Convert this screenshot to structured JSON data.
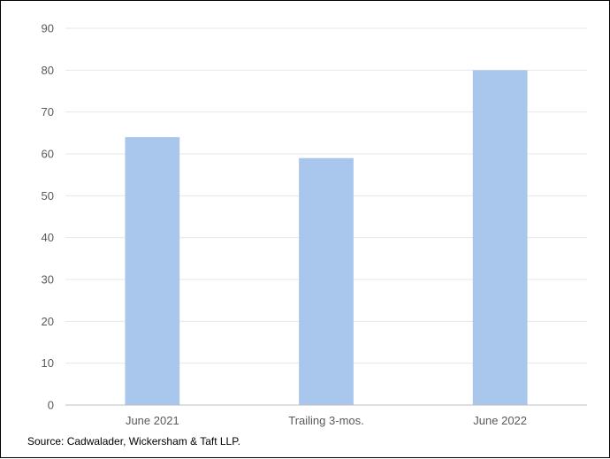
{
  "chart_data": {
    "type": "bar",
    "categories": [
      "June 2021",
      "Trailing 3-mos.",
      "June 2022"
    ],
    "values": [
      64,
      59,
      80
    ],
    "ylim": [
      0,
      90
    ],
    "yticks": [
      0,
      10,
      20,
      30,
      40,
      50,
      60,
      70,
      80,
      90
    ],
    "grid": true,
    "bar_color": "#a9c6ec",
    "grid_color": "#e7e7e7",
    "axis_color": "#bfbfbf"
  },
  "source": "Source: Cadwalader, Wickersham & Taft LLP."
}
